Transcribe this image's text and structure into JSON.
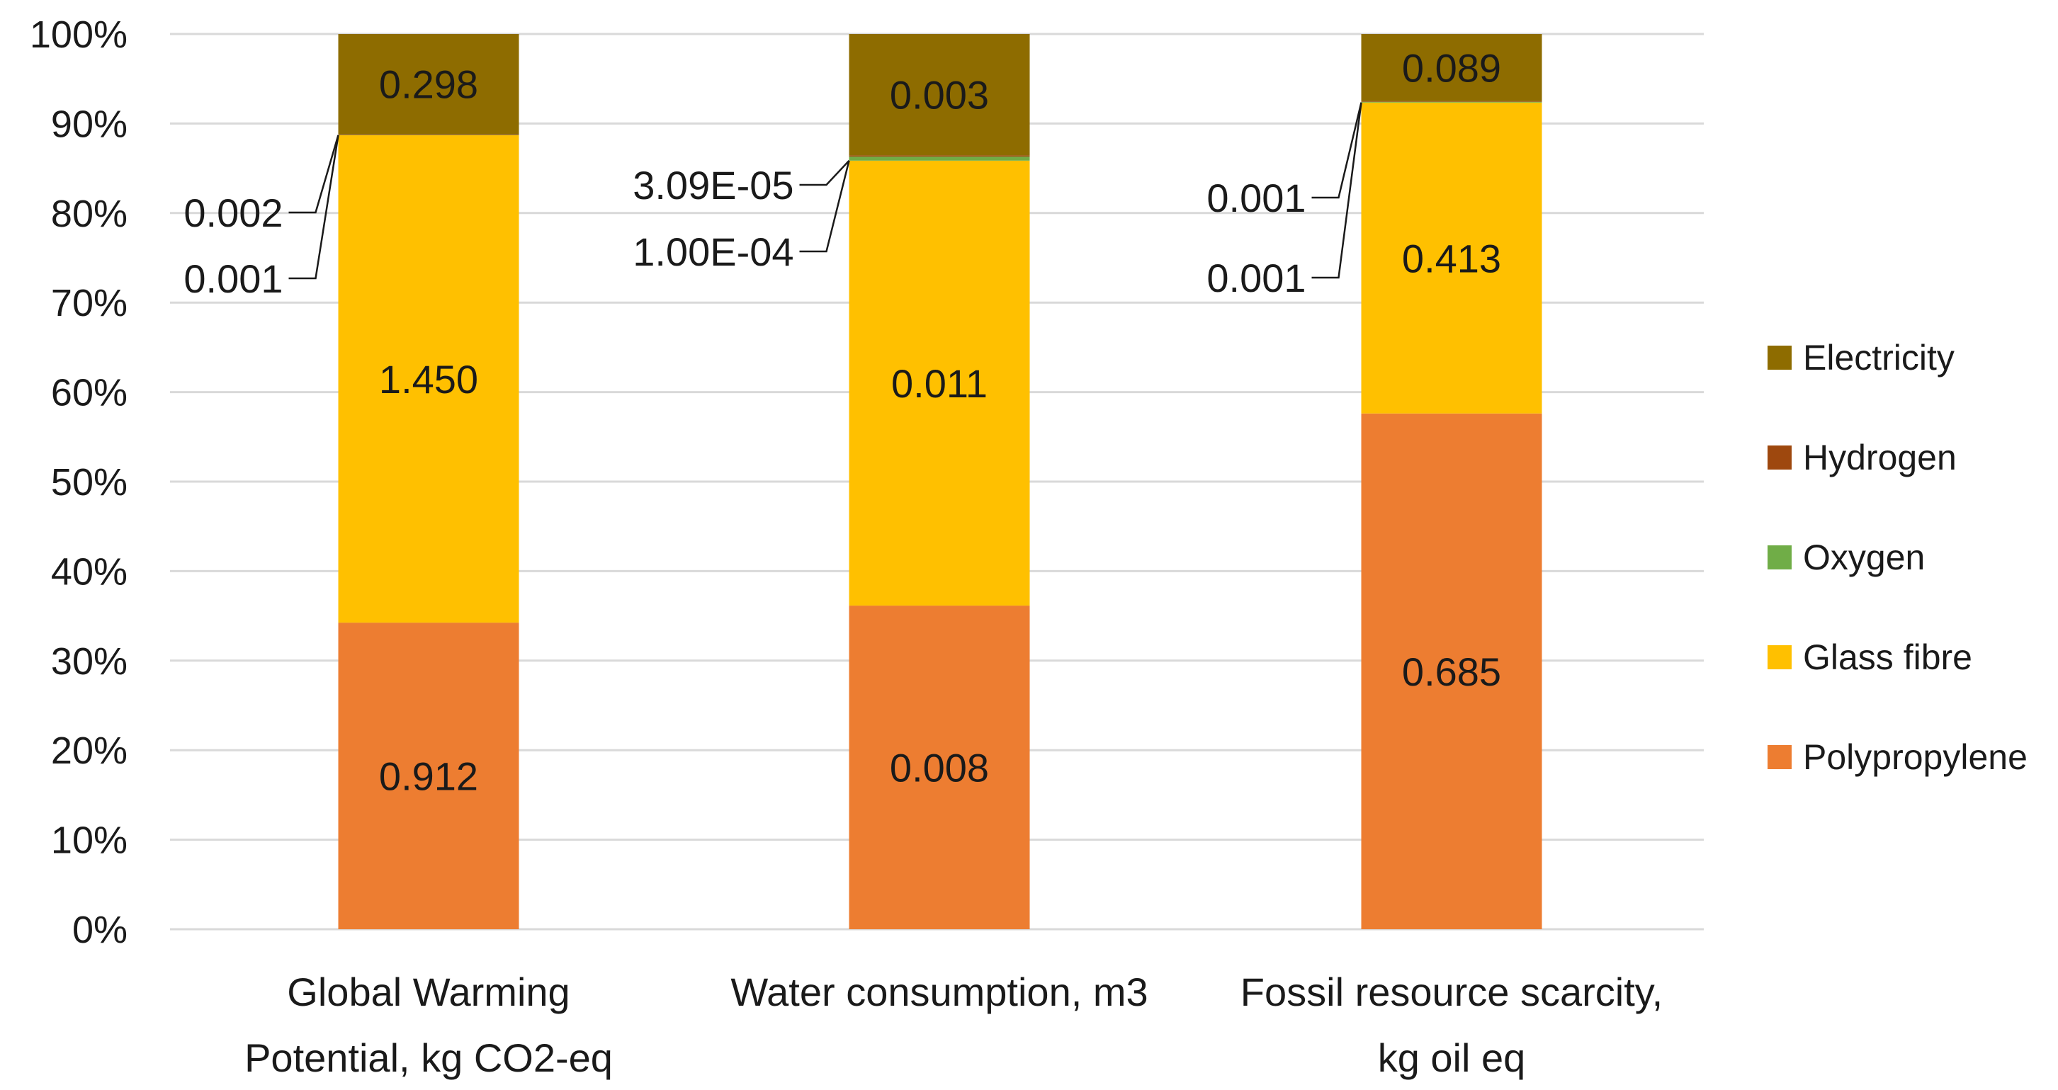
{
  "chart_data": {
    "type": "bar",
    "stacked": "percent",
    "title": "",
    "xlabel": "",
    "ylabel": "",
    "ylim": [
      0,
      100
    ],
    "y_ticks": [
      "0%",
      "10%",
      "20%",
      "30%",
      "40%",
      "50%",
      "60%",
      "70%",
      "80%",
      "90%",
      "100%"
    ],
    "grid": true,
    "legend_position": "right",
    "categories": [
      [
        "Global Warming",
        "Potential, kg CO2-eq"
      ],
      [
        "Water consumption, m3"
      ],
      [
        "Fossil resource scarcity,",
        "kg oil eq"
      ]
    ],
    "series": [
      {
        "name": "Polypropylene",
        "color": "#ED7D31",
        "values": [
          0.912,
          0.008,
          0.685
        ],
        "labels": [
          "0.912",
          "0.008",
          "0.685"
        ]
      },
      {
        "name": "Glass fibre",
        "color": "#FFC000",
        "values": [
          1.45,
          0.011,
          0.413
        ],
        "labels": [
          "1.450",
          "0.011",
          "0.413"
        ]
      },
      {
        "name": "Oxygen",
        "color": "#70AD47",
        "values": [
          0.001,
          0.0001,
          0.001
        ],
        "labels": [
          "0.001",
          "1.00E-04",
          "0.001"
        ]
      },
      {
        "name": "Hydrogen",
        "color": "#9E480E",
        "values": [
          0.002,
          3.09e-05,
          0.001
        ],
        "labels": [
          "0.002",
          "3.09E-05",
          "0.001"
        ]
      },
      {
        "name": "Electricity",
        "color": "#8E6C00",
        "values": [
          0.298,
          0.003,
          0.089
        ],
        "labels": [
          "0.298",
          "0.003",
          "0.089"
        ]
      }
    ],
    "legend_order": [
      "Electricity",
      "Hydrogen",
      "Oxygen",
      "Glass fibre",
      "Polypropylene"
    ]
  }
}
